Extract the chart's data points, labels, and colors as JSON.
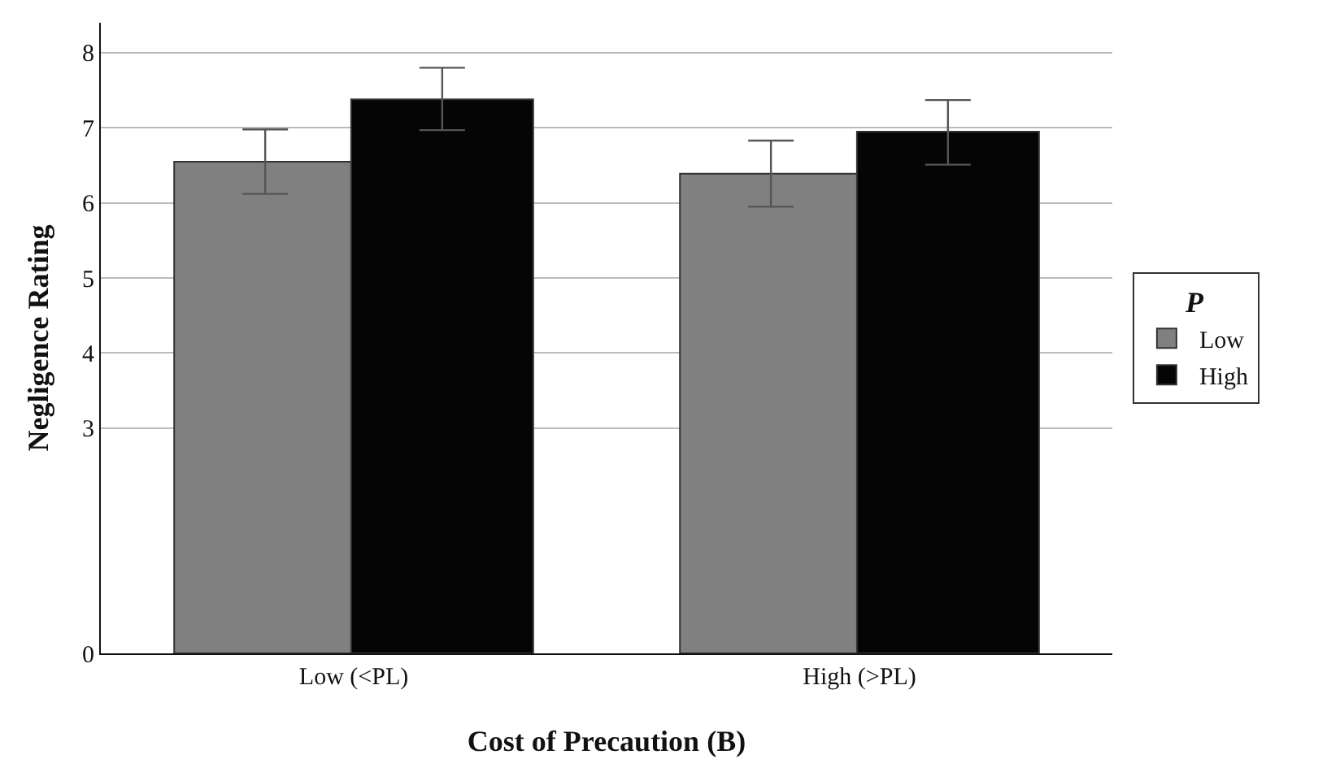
{
  "chart_data": {
    "type": "bar",
    "xlabel": "Cost of Precaution (B)",
    "ylabel": "Negligence Rating",
    "legend_title": "P",
    "categories": [
      "Low (<PL)",
      "High (>PL)"
    ],
    "series": [
      {
        "name": "Low",
        "color": "#808080",
        "values": [
          6.55,
          6.39
        ],
        "errors": [
          [
            6.12,
            6.98
          ],
          [
            5.95,
            6.83
          ]
        ]
      },
      {
        "name": "High",
        "color": "#050505",
        "values": [
          7.38,
          6.95
        ],
        "errors": [
          [
            6.97,
            7.8
          ],
          [
            6.51,
            7.37
          ]
        ]
      }
    ],
    "ylim": [
      0,
      8.4
    ],
    "yticks": [
      0,
      3,
      4,
      5,
      6,
      7,
      8
    ],
    "grid": "y",
    "legend": "right"
  }
}
